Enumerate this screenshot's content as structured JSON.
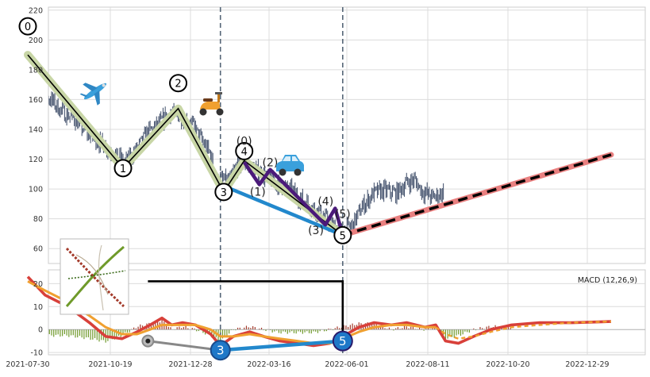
{
  "chart_data": {
    "type": "line",
    "x_ticks": [
      "2021-07-30",
      "2021-10-19",
      "2021-12-28",
      "2022-03-16",
      "2022-06-01",
      "2022-08-11",
      "2022-10-20",
      "2022-12-29"
    ],
    "price_panel": {
      "ylim": [
        50,
        222
      ],
      "y_ticks": [
        60,
        80,
        100,
        120,
        140,
        160,
        180,
        200,
        220
      ],
      "candles": [
        [
          "2021-07-30",
          196
        ],
        [
          "2021-08-03",
          170
        ],
        [
          "2021-08-10",
          163
        ],
        [
          "2021-08-20",
          160
        ],
        [
          "2021-09-01",
          151
        ],
        [
          "2021-09-10",
          148
        ],
        [
          "2021-09-20",
          140
        ],
        [
          "2021-10-01",
          133
        ],
        [
          "2021-10-10",
          128
        ],
        [
          "2021-10-19",
          123
        ],
        [
          "2021-10-28",
          117
        ],
        [
          "2021-11-08",
          127
        ],
        [
          "2021-11-18",
          138
        ],
        [
          "2021-11-28",
          143
        ],
        [
          "2021-12-08",
          151
        ],
        [
          "2021-12-18",
          149
        ],
        [
          "2021-12-28",
          144
        ],
        [
          "2022-01-07",
          132
        ],
        [
          "2022-01-14",
          124
        ],
        [
          "2022-01-21",
          106
        ],
        [
          "2022-02-01",
          105
        ],
        [
          "2022-02-08",
          115
        ],
        [
          "2022-02-15",
          117
        ],
        [
          "2022-02-24",
          113
        ],
        [
          "2022-03-03",
          110
        ],
        [
          "2022-03-12",
          106
        ],
        [
          "2022-03-22",
          102
        ],
        [
          "2022-04-01",
          98
        ],
        [
          "2022-04-11",
          92
        ],
        [
          "2022-04-21",
          87
        ],
        [
          "2022-05-01",
          80
        ],
        [
          "2022-05-10",
          74
        ],
        [
          "2022-05-17",
          71
        ],
        [
          "2022-05-26",
          76
        ],
        [
          "2022-06-04",
          88
        ],
        [
          "2022-06-14",
          97
        ],
        [
          "2022-06-24",
          99
        ],
        [
          "2022-07-05",
          97
        ],
        [
          "2022-07-15",
          104
        ],
        [
          "2022-07-22",
          106
        ],
        [
          "2022-07-29",
          99
        ],
        [
          "2022-08-08",
          94
        ],
        [
          "2022-08-18",
          98
        ]
      ],
      "zigzag": [
        {
          "label": "0",
          "date": "2021-07-30",
          "value": 190
        },
        {
          "label": "1",
          "date": "2021-10-26",
          "value": 114
        },
        {
          "label": "2",
          "date": "2021-12-16",
          "value": 154
        },
        {
          "label": "3",
          "date": "2022-01-27",
          "value": 98
        },
        {
          "label": "4",
          "date": "2022-02-15",
          "value": 119
        },
        {
          "label": "5",
          "date": "2022-05-17",
          "value": 69
        }
      ],
      "subwave": [
        {
          "label": "(0)",
          "date": "2022-02-15",
          "value": 118
        },
        {
          "label": "(1)",
          "date": "2022-03-01",
          "value": 103
        },
        {
          "label": "(2)",
          "date": "2022-03-11",
          "value": 113
        },
        {
          "label": "(3)",
          "date": "2022-05-01",
          "value": 76
        },
        {
          "label": "(4)",
          "date": "2022-05-10",
          "value": 87
        },
        {
          "label": "(5)",
          "date": "2022-05-17",
          "value": 69
        }
      ],
      "blue_line": [
        [
          "2022-01-27",
          102
        ],
        [
          "2022-05-17",
          69
        ]
      ],
      "projection": [
        [
          "2022-05-17",
          69
        ],
        [
          "2023-01-20",
          123
        ]
      ],
      "vlines": [
        "2022-01-24",
        "2022-05-17"
      ]
    },
    "macd_panel": {
      "title": "MACD (12,26,9)",
      "ylim": [
        -11,
        26
      ],
      "y_ticks": [
        -10,
        0,
        10,
        20
      ],
      "macd_line": [
        [
          "2021-07-30",
          23
        ],
        [
          "2021-08-15",
          15
        ],
        [
          "2021-09-05",
          10
        ],
        [
          "2021-09-25",
          3
        ],
        [
          "2021-10-10",
          -3
        ],
        [
          "2021-10-25",
          -4
        ],
        [
          "2021-11-08",
          -1
        ],
        [
          "2021-11-20",
          2
        ],
        [
          "2021-12-01",
          5
        ],
        [
          "2021-12-10",
          2
        ],
        [
          "2021-12-20",
          3
        ],
        [
          "2022-01-01",
          2
        ],
        [
          "2022-01-15",
          -2
        ],
        [
          "2022-01-24",
          -7
        ],
        [
          "2022-02-05",
          -3
        ],
        [
          "2022-02-20",
          -1
        ],
        [
          "2022-03-05",
          -3
        ],
        [
          "2022-03-20",
          -5
        ],
        [
          "2022-04-05",
          -6
        ],
        [
          "2022-04-20",
          -7
        ],
        [
          "2022-05-05",
          -6
        ],
        [
          "2022-05-17",
          -3
        ],
        [
          "2022-06-01",
          1
        ],
        [
          "2022-06-15",
          3
        ],
        [
          "2022-07-01",
          2
        ],
        [
          "2022-07-15",
          3
        ],
        [
          "2022-08-01",
          1
        ],
        [
          "2022-08-11",
          2
        ],
        [
          "2022-08-20",
          -5
        ],
        [
          "2022-09-01",
          -6
        ],
        [
          "2022-09-15",
          -3
        ],
        [
          "2022-10-01",
          0
        ],
        [
          "2022-10-20",
          2
        ],
        [
          "2022-11-15",
          3
        ],
        [
          "2022-12-15",
          3
        ],
        [
          "2023-01-20",
          3.5
        ]
      ],
      "signal_line": [
        [
          "2021-07-30",
          21
        ],
        [
          "2021-08-15",
          17
        ],
        [
          "2021-09-05",
          12
        ],
        [
          "2021-09-25",
          6
        ],
        [
          "2021-10-10",
          1
        ],
        [
          "2021-10-25",
          -2
        ],
        [
          "2021-11-08",
          -2
        ],
        [
          "2021-11-20",
          0
        ],
        [
          "2021-12-01",
          2
        ],
        [
          "2021-12-10",
          2
        ],
        [
          "2021-12-20",
          2
        ],
        [
          "2022-01-01",
          2
        ],
        [
          "2022-01-15",
          0
        ],
        [
          "2022-01-24",
          -3
        ],
        [
          "2022-02-05",
          -3
        ],
        [
          "2022-02-20",
          -2
        ],
        [
          "2022-03-05",
          -3
        ],
        [
          "2022-03-20",
          -4
        ],
        [
          "2022-04-05",
          -5
        ],
        [
          "2022-04-20",
          -6
        ],
        [
          "2022-05-05",
          -6
        ],
        [
          "2022-05-17",
          -4
        ],
        [
          "2022-06-01",
          -1
        ],
        [
          "2022-06-15",
          1
        ],
        [
          "2022-07-01",
          2
        ],
        [
          "2022-07-15",
          2
        ],
        [
          "2022-08-01",
          1
        ],
        [
          "2022-08-11",
          1
        ],
        [
          "2022-08-20",
          -2
        ],
        [
          "2022-09-01",
          -4
        ],
        [
          "2022-09-15",
          -3
        ],
        [
          "2022-10-01",
          -1
        ],
        [
          "2022-10-20",
          1
        ],
        [
          "2022-11-15",
          2
        ],
        [
          "2022-12-15",
          3
        ],
        [
          "2023-01-20",
          3.5
        ]
      ],
      "markers": [
        {
          "label": "",
          "date": "2021-11-18",
          "value": -5
        },
        {
          "label": "3",
          "date": "2022-01-24",
          "value": -9
        },
        {
          "label": "5",
          "date": "2022-05-17",
          "value": -5
        }
      ],
      "bracket": {
        "start": "2021-11-18",
        "end": "2022-05-17",
        "level": 21
      }
    },
    "icons": [
      "airplane-icon",
      "scooter-icon",
      "car-icon",
      "thumbnail-image"
    ],
    "colors": {
      "candles": "#3b4a66",
      "zigzag": "#000000",
      "zigzag_halo": "#c8d6a6",
      "subwave": "#4b1a7a",
      "blue": "#2288cc",
      "projection_halo": "#e98080",
      "macd": "#d8403a",
      "signal": "#f0a030",
      "hist_pos": "#a33a2a",
      "hist_neg": "#6f9a2a",
      "vline": "#556677",
      "grid": "#dcdcdc",
      "marker_blue": "#1f78c8",
      "marker_gray": "#555555"
    }
  }
}
